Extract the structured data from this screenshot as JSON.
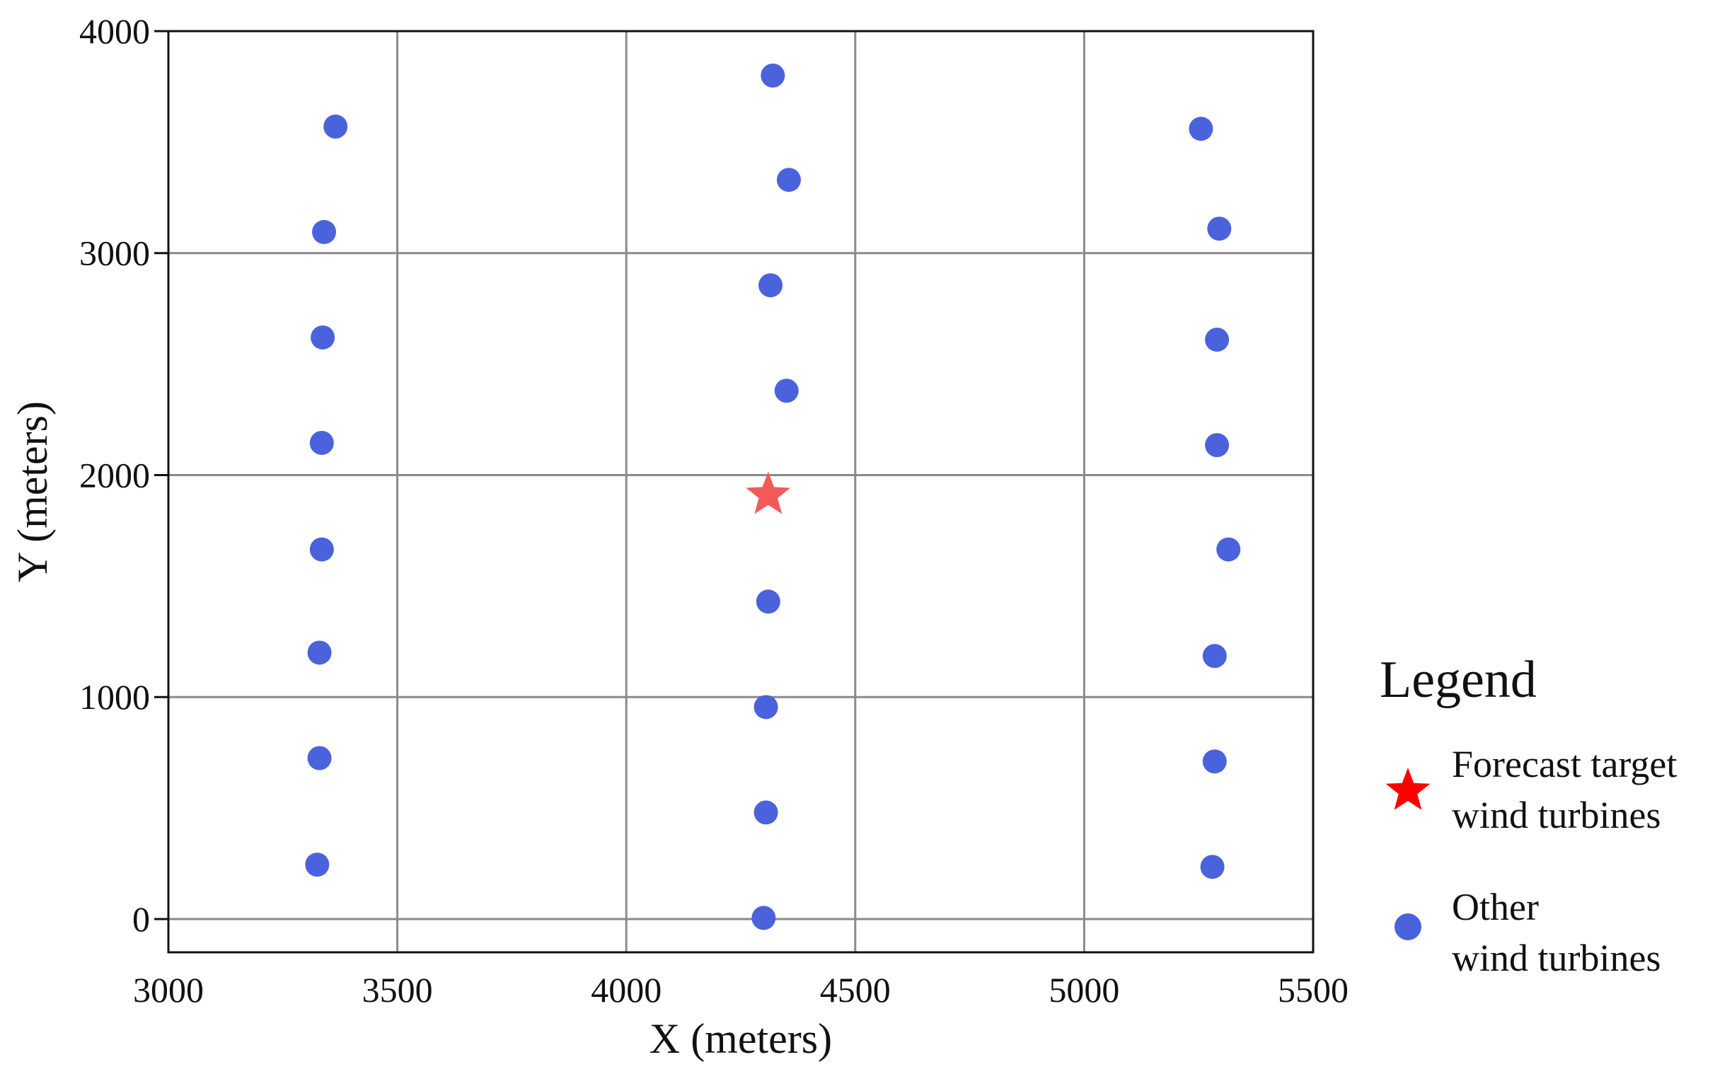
{
  "chart_data": {
    "type": "scatter",
    "title": "",
    "xlabel": "X (meters)",
    "ylabel": "Y (meters)",
    "xlim": [
      3000,
      5500
    ],
    "ylim": [
      -150,
      4000
    ],
    "xticks": [
      3000,
      3500,
      4000,
      4500,
      5000,
      5500
    ],
    "yticks": [
      0,
      1000,
      2000,
      3000,
      4000
    ],
    "xtick_labels": [
      "3000",
      "3500",
      "4000",
      "4500",
      "5000",
      "5500"
    ],
    "ytick_labels": [
      "0",
      "1000",
      "2000",
      "3000",
      "4000"
    ],
    "grid": true,
    "legend": {
      "title": "Legend",
      "position": "right",
      "entries": [
        {
          "series": "target",
          "line1": "Forecast target",
          "line2": "wind turbines"
        },
        {
          "series": "other",
          "line1": "Other",
          "line2": "wind turbines"
        }
      ]
    },
    "series": [
      {
        "key": "other",
        "name": "Other wind turbines",
        "marker": "circle",
        "color": "#4a62dc",
        "points": [
          {
            "x": 3365,
            "y": 3570
          },
          {
            "x": 3340,
            "y": 3095
          },
          {
            "x": 3337,
            "y": 2620
          },
          {
            "x": 3335,
            "y": 2145
          },
          {
            "x": 3335,
            "y": 1665
          },
          {
            "x": 3330,
            "y": 1200
          },
          {
            "x": 3330,
            "y": 725
          },
          {
            "x": 3325,
            "y": 245
          },
          {
            "x": 4320,
            "y": 3800
          },
          {
            "x": 4355,
            "y": 3330
          },
          {
            "x": 4315,
            "y": 2855
          },
          {
            "x": 4350,
            "y": 2380
          },
          {
            "x": 4310,
            "y": 1430
          },
          {
            "x": 4305,
            "y": 955
          },
          {
            "x": 4305,
            "y": 480
          },
          {
            "x": 4300,
            "y": 5
          },
          {
            "x": 5255,
            "y": 3560
          },
          {
            "x": 5295,
            "y": 3110
          },
          {
            "x": 5290,
            "y": 2610
          },
          {
            "x": 5290,
            "y": 2135
          },
          {
            "x": 5315,
            "y": 1665
          },
          {
            "x": 5285,
            "y": 1185
          },
          {
            "x": 5285,
            "y": 710
          },
          {
            "x": 5280,
            "y": 235
          }
        ]
      },
      {
        "key": "target",
        "name": "Forecast target wind turbines",
        "marker": "star",
        "color": "#f25a5a",
        "points": [
          {
            "x": 4310,
            "y": 1910
          }
        ]
      }
    ],
    "legend_colors": {
      "target": "#ff0000",
      "other": "#4a62dc"
    }
  }
}
